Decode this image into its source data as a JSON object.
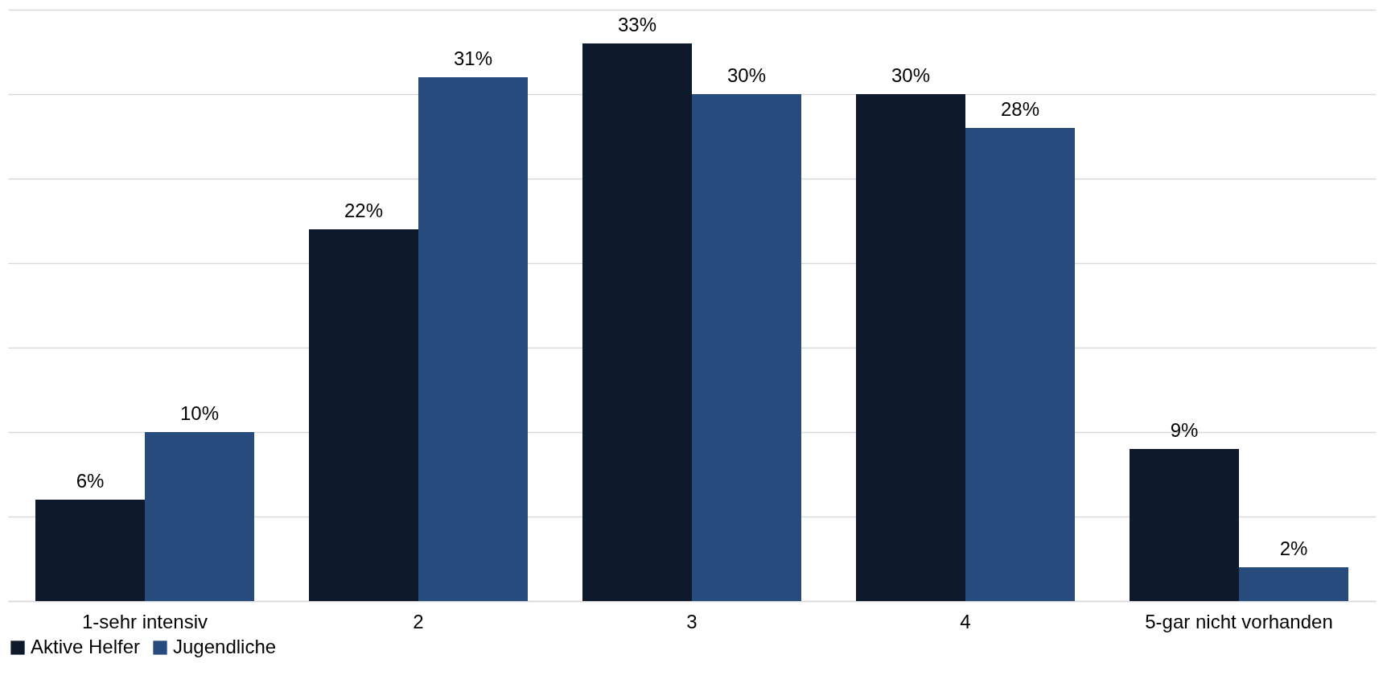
{
  "chart_data": {
    "type": "bar",
    "categories": [
      "1-sehr intensiv",
      "2",
      "3",
      "4",
      "5-gar nicht vorhanden"
    ],
    "series": [
      {
        "name": "Aktive Helfer",
        "color": "#0e1a2b",
        "values": [
          6,
          22,
          33,
          30,
          9
        ],
        "value_labels": [
          "6%",
          "22%",
          "33%",
          "30%",
          "9%"
        ]
      },
      {
        "name": "Jugendliche",
        "color": "#284b7e",
        "values": [
          10,
          31,
          30,
          28,
          2
        ],
        "value_labels": [
          "10%",
          "31%",
          "30%",
          "28%",
          "2%"
        ]
      }
    ],
    "ylim": [
      0,
      35
    ],
    "yticks": [
      {
        "value": 0,
        "label": null
      },
      {
        "value": 5,
        "label": null
      },
      {
        "value": 10,
        "label": null
      },
      {
        "value": 15,
        "label": null
      },
      {
        "value": 20,
        "label": null
      },
      {
        "value": 25,
        "label": null
      },
      {
        "value": 30,
        "label": null
      },
      {
        "value": 35,
        "label": null
      }
    ],
    "tick_labels": "x",
    "grid": "y",
    "legend": "bottom"
  }
}
